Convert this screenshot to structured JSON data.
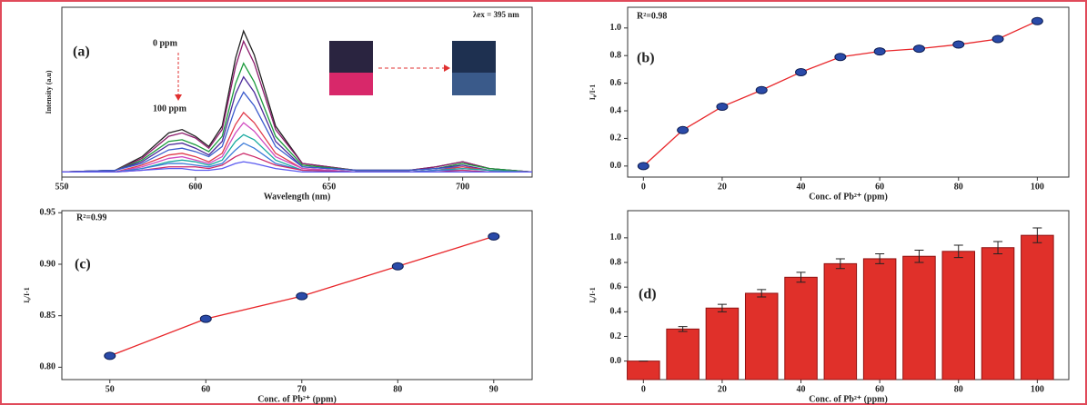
{
  "chart_data": [
    {
      "type": "line",
      "xlabel": "Wavelength (nm)",
      "ylabel": "Intensity (a.u)",
      "annotations": [
        "(a)",
        "0 ppm",
        "100 ppm",
        "λex = 395 nm"
      ],
      "x": [
        550,
        570,
        580,
        590,
        595,
        600,
        605,
        610,
        615,
        618,
        622,
        630,
        640,
        660,
        680,
        690,
        700,
        710,
        726
      ],
      "xlim": [
        550,
        726
      ],
      "xticks": [
        550,
        600,
        650,
        700
      ],
      "ylim": [
        0,
        100
      ],
      "series": [
        {
          "color": "#222222",
          "values": [
            3,
            4,
            12,
            26,
            28,
            24,
            18,
            30,
            70,
            86,
            72,
            30,
            8,
            4,
            4,
            6,
            9,
            5,
            3
          ]
        },
        {
          "color": "#8b1a6b",
          "values": [
            3,
            4,
            11,
            24,
            26,
            23,
            17,
            28,
            65,
            80,
            67,
            28,
            8,
            4,
            4,
            6,
            9,
            5,
            3
          ]
        },
        {
          "color": "#1a9a3a",
          "values": [
            3,
            4,
            10,
            21,
            22,
            19,
            15,
            24,
            55,
            67,
            56,
            24,
            7,
            4,
            4,
            5,
            8,
            5,
            3
          ]
        },
        {
          "color": "#4b2a9a",
          "values": [
            3,
            4,
            9,
            19,
            20,
            17,
            13,
            21,
            49,
            59,
            50,
            21,
            6,
            4,
            4,
            5,
            7,
            4,
            3
          ]
        },
        {
          "color": "#3a5acc",
          "values": [
            3,
            4,
            8,
            16,
            17,
            15,
            12,
            18,
            41,
            50,
            42,
            18,
            6,
            4,
            4,
            5,
            6,
            4,
            3
          ]
        },
        {
          "color": "#e03a4a",
          "values": [
            3,
            3,
            7,
            13,
            14,
            12,
            9,
            14,
            31,
            38,
            32,
            14,
            5,
            3,
            3,
            4,
            6,
            4,
            3
          ]
        },
        {
          "color": "#d04ac0",
          "values": [
            3,
            3,
            6,
            11,
            12,
            10,
            8,
            12,
            26,
            32,
            27,
            12,
            5,
            3,
            3,
            4,
            5,
            4,
            3
          ]
        },
        {
          "color": "#1aaaa0",
          "values": [
            3,
            3,
            5,
            9,
            10,
            9,
            7,
            10,
            21,
            25,
            22,
            10,
            4,
            3,
            3,
            4,
            5,
            4,
            3
          ]
        },
        {
          "color": "#3a7ad8",
          "values": [
            3,
            3,
            5,
            8,
            8,
            7,
            6,
            8,
            16,
            20,
            17,
            8,
            4,
            3,
            3,
            4,
            4,
            3,
            3
          ]
        },
        {
          "color": "#cc2a6a",
          "values": [
            3,
            3,
            4,
            6,
            6,
            6,
            5,
            7,
            12,
            14,
            12,
            7,
            4,
            3,
            3,
            3,
            4,
            3,
            3
          ]
        },
        {
          "color": "#5a5af0",
          "values": [
            3,
            3,
            4,
            5,
            5,
            4,
            4,
            5,
            8,
            9,
            8,
            5,
            3,
            3,
            3,
            3,
            3,
            3,
            3
          ]
        }
      ]
    },
    {
      "type": "line",
      "xlabel": "Conc. of Pb²⁺ (ppm)",
      "ylabel": "I₀/I-1",
      "annotations": [
        "(b)",
        "R²=0.98"
      ],
      "x": [
        0,
        10,
        20,
        30,
        40,
        50,
        60,
        70,
        80,
        90,
        100
      ],
      "xlim": [
        -4,
        108
      ],
      "xticks": [
        0,
        20,
        40,
        60,
        80,
        100
      ],
      "ylim": [
        -0.08,
        1.15
      ],
      "yticks": [
        {
          "value": 0,
          "label": "0.0"
        },
        0.2,
        0.4,
        0.6,
        0.8,
        {
          "value": 1,
          "label": "1.0"
        }
      ],
      "markers": true,
      "marker_color": "#2a4aa8",
      "series": [
        {
          "color": "#e8262a",
          "values": [
            0,
            0.26,
            0.43,
            0.55,
            0.68,
            0.79,
            0.83,
            0.85,
            0.88,
            0.92,
            1.05
          ]
        }
      ]
    },
    {
      "type": "line",
      "xlabel": "Conc. of Pb²⁺ (ppm)",
      "ylabel": "I₀/I-1",
      "annotations": [
        "(c)",
        "R²=0.99"
      ],
      "x": [
        50,
        60,
        70,
        80,
        90
      ],
      "xlim": [
        45,
        94
      ],
      "xticks": [
        50,
        60,
        70,
        80,
        90
      ],
      "ylim": [
        0.788,
        0.952
      ],
      "yticks": [
        {
          "value": 0.8,
          "label": "0.80"
        },
        0.85,
        {
          "value": 0.9,
          "label": "0.90"
        },
        0.95
      ],
      "markers": true,
      "marker_color": "#2a4aa8",
      "series": [
        {
          "color": "#e8262a",
          "values": [
            0.811,
            0.847,
            0.869,
            0.898,
            0.927
          ]
        }
      ]
    },
    {
      "type": "bar",
      "xlabel": "Conc. of Pb²⁺ (ppm)",
      "ylabel": "I₀/I-1",
      "annotations": [
        "(d)"
      ],
      "x": [
        0,
        10,
        20,
        30,
        40,
        50,
        60,
        70,
        80,
        90,
        100
      ],
      "xlim": [
        -4,
        108
      ],
      "xticks": [
        0,
        20,
        40,
        60,
        80,
        100
      ],
      "ylim": [
        -0.15,
        1.22
      ],
      "yticks": [
        {
          "value": 0,
          "label": "0.0"
        },
        0.2,
        0.4,
        0.6,
        0.8,
        {
          "value": 1,
          "label": "1.0"
        }
      ],
      "color": "#e0302a",
      "values": [
        0,
        0.26,
        0.43,
        0.55,
        0.68,
        0.79,
        0.83,
        0.85,
        0.89,
        0.92,
        1.02
      ],
      "errors": [
        0,
        0.02,
        0.03,
        0.03,
        0.04,
        0.04,
        0.04,
        0.05,
        0.05,
        0.05,
        0.06
      ]
    }
  ]
}
